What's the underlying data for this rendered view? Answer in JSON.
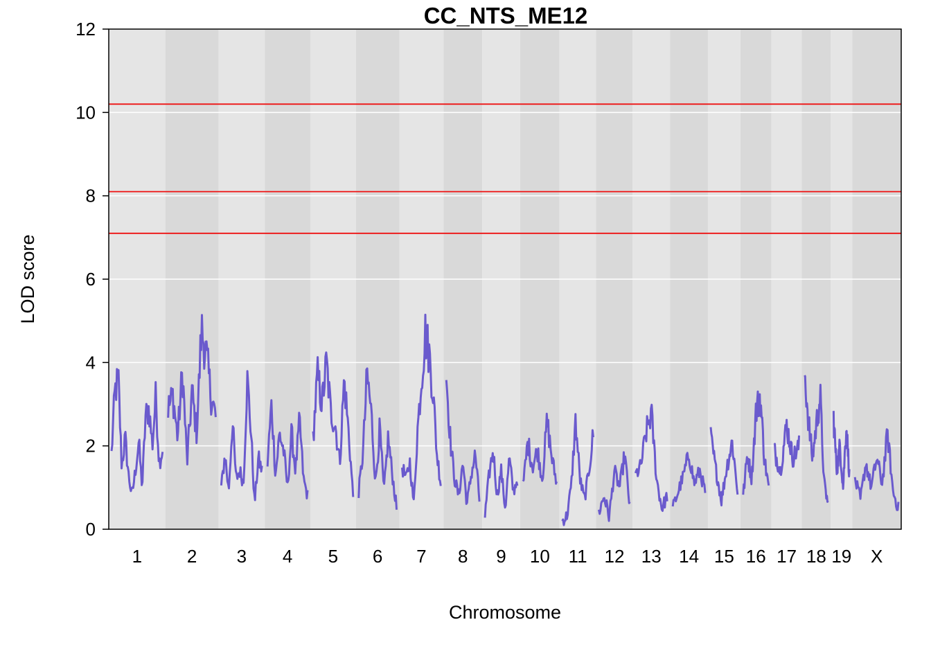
{
  "chart_data": {
    "type": "line",
    "title": "CC_NTS_ME12",
    "xlabel": "Chromosome",
    "ylabel": "LOD score",
    "ylim": [
      0,
      12
    ],
    "yticks": [
      "0",
      "2",
      "4",
      "6",
      "8",
      "10",
      "12"
    ],
    "grid": true,
    "chromosomes": [
      "1",
      "2",
      "3",
      "4",
      "5",
      "6",
      "7",
      "8",
      "9",
      "10",
      "11",
      "12",
      "13",
      "14",
      "15",
      "16",
      "17",
      "18",
      "19",
      "X"
    ],
    "chromosome_widths": [
      82,
      77,
      67,
      66,
      66,
      63,
      64,
      56,
      55,
      57,
      53,
      53,
      54,
      55,
      47,
      45,
      44,
      42,
      31,
      71
    ],
    "thresholds": [
      10.2,
      8.1,
      7.1
    ],
    "series": [
      {
        "color": "#6a5acd",
        "values": [
          [
            1.8,
            3.3,
            3.6,
            1.5,
            2.2,
            1.3,
            0.8,
            1.4,
            2.1,
            1.0,
            2.7,
            2.9,
            2.0,
            3.2,
            1.6,
            1.9
          ],
          [
            2.9,
            3.2,
            2.2,
            3.8,
            1.6,
            3.3,
            2.3,
            4.8,
            4.2,
            3.2,
            2.7
          ],
          [
            1.0,
            1.8,
            0.9,
            2.6,
            1.2,
            1.4,
            1.1,
            3.6,
            2.4,
            0.6,
            1.7,
            1.4
          ],
          [
            1.6,
            3.0,
            1.3,
            2.3,
            1.9,
            1.0,
            2.3,
            1.4,
            2.6,
            1.2,
            0.8
          ],
          [
            2.2,
            3.7,
            3.0,
            4.0,
            2.8,
            2.5,
            1.6,
            3.6,
            2.3,
            0.8
          ],
          [
            0.9,
            1.8,
            3.7,
            2.8,
            1.1,
            2.4,
            0.9,
            2.2,
            1.3,
            0.5
          ],
          [
            1.5,
            1.2,
            1.6,
            0.6,
            2.4,
            3.6,
            4.7,
            4.2,
            3.3,
            1.8,
            1.1
          ],
          [
            3.7,
            2.1,
            1.2,
            0.8,
            1.6,
            0.6,
            1.3,
            1.8,
            0.7
          ],
          [
            0.3,
            1.3,
            1.9,
            0.8,
            1.4,
            0.5,
            1.7,
            0.9,
            1.2
          ],
          [
            1.0,
            2.1,
            1.5,
            1.9,
            1.2,
            2.6,
            1.7,
            1.1
          ],
          [
            0.2,
            0.3,
            1.0,
            2.6,
            1.2,
            0.7,
            1.4,
            2.3
          ],
          [
            0.4,
            0.8,
            0.3,
            1.4,
            1.0,
            1.8,
            0.5
          ],
          [
            1.3,
            1.5,
            2.3,
            2.8,
            1.2,
            0.5,
            0.8
          ],
          [
            0.5,
            0.9,
            1.3,
            1.8,
            1.1,
            1.4,
            0.9
          ],
          [
            2.2,
            1.4,
            0.7,
            1.5,
            2.1,
            0.9
          ],
          [
            0.8,
            1.8,
            1.2,
            2.8,
            3.2,
            1.7,
            1.0
          ],
          [
            1.9,
            1.4,
            2.5,
            1.7,
            2.0
          ],
          [
            3.8,
            2.6,
            1.7,
            2.5,
            3.2,
            1.1,
            0.6
          ],
          [
            2.7,
            1.4,
            2.0,
            1.0,
            2.5,
            1.3
          ],
          [
            1.2,
            0.7,
            1.6,
            1.0,
            1.7,
            1.1,
            2.3,
            0.9,
            0.5
          ]
        ]
      }
    ]
  }
}
